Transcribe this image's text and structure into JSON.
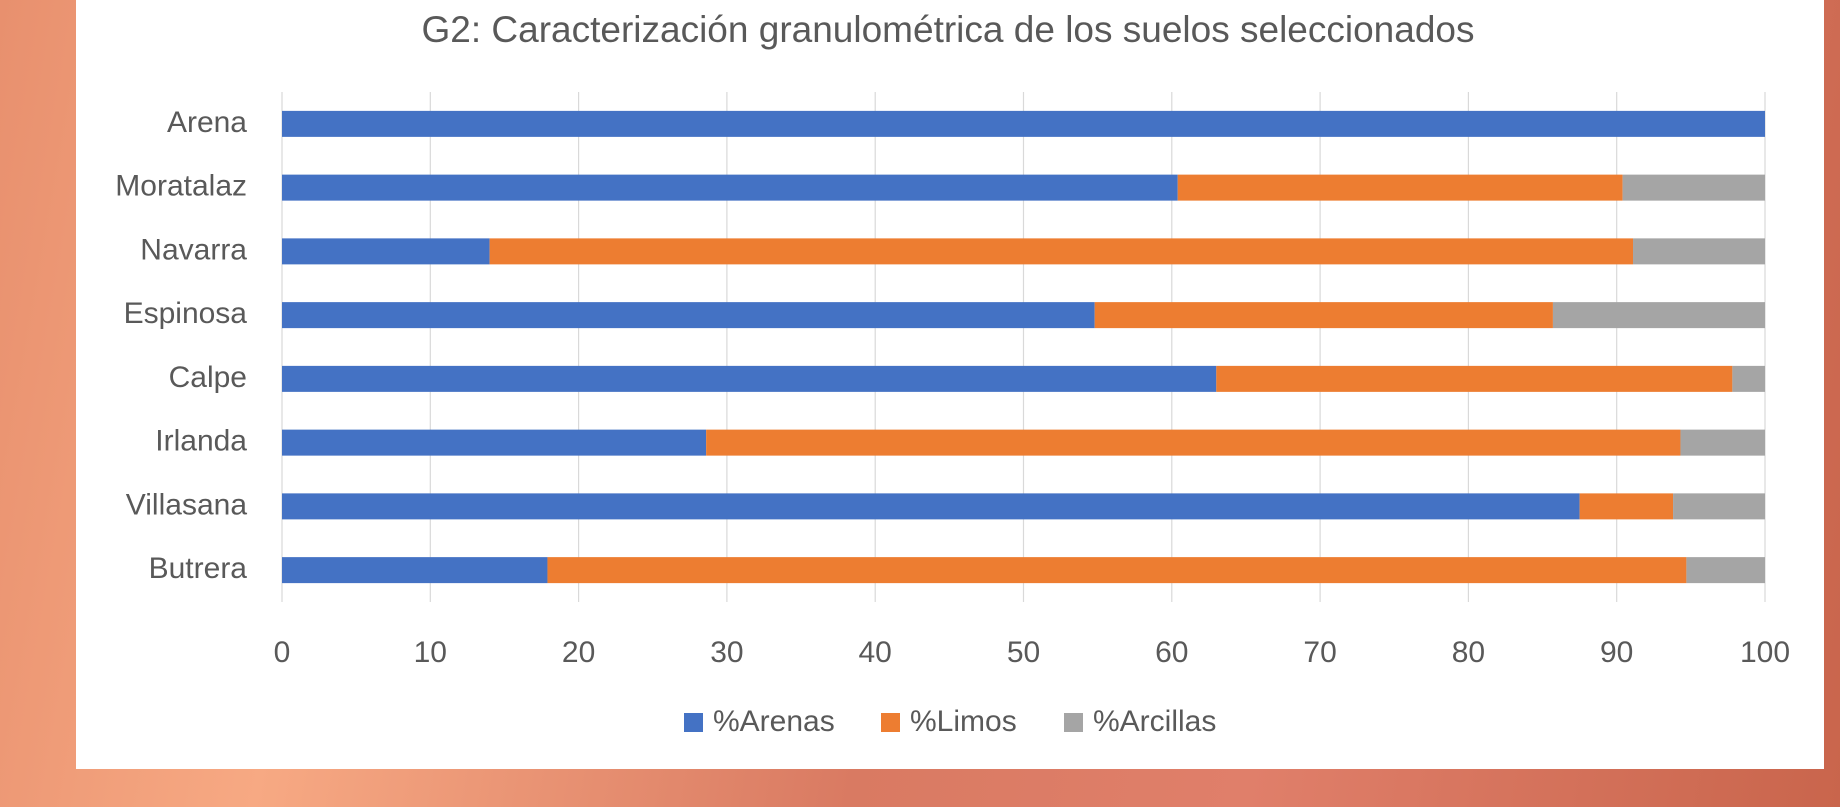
{
  "chart_data": {
    "type": "stacked-barh",
    "title": "G2: Caracterización granulométrica de los suelos seleccionados",
    "categories": [
      "Arena",
      "Moratalaz",
      "Navarra",
      "Espinosa",
      "Calpe",
      "Irlanda",
      "Villasana",
      "Butrera"
    ],
    "series": [
      {
        "name": "%Arenas",
        "color": "#4472c4",
        "values": [
          100,
          60.4,
          14.0,
          54.8,
          63.0,
          28.6,
          87.5,
          17.9
        ]
      },
      {
        "name": "%Limos",
        "color": "#ed7d31",
        "values": [
          0,
          30.0,
          77.1,
          30.9,
          34.8,
          65.7,
          6.3,
          76.8
        ]
      },
      {
        "name": "%Arcillas",
        "color": "#a5a5a5",
        "values": [
          0,
          9.6,
          8.9,
          14.3,
          2.2,
          5.7,
          6.2,
          5.3
        ]
      }
    ],
    "xlim": [
      0,
      100
    ],
    "xticks": [
      0,
      10,
      20,
      30,
      40,
      50,
      60,
      70,
      80,
      90,
      100
    ],
    "grid": true,
    "legend": "bottom"
  }
}
